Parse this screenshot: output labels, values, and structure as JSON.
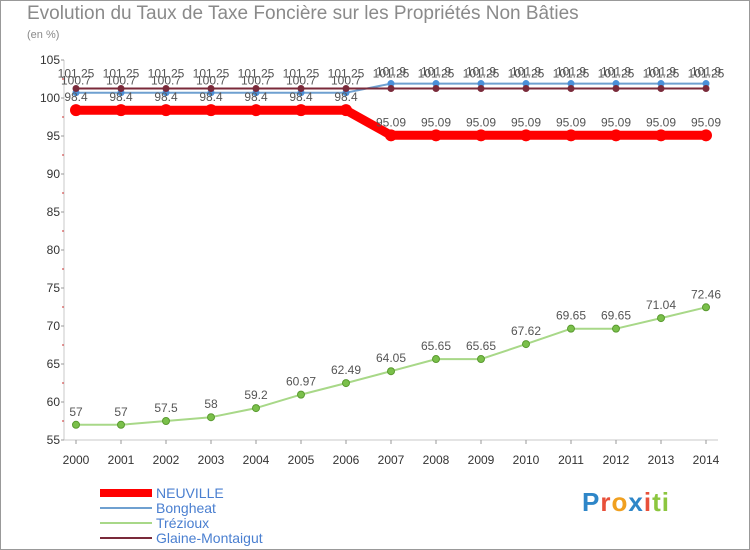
{
  "title": "Evolution du Taux de Taxe Foncière sur les Propriétés Non Bâties",
  "unit_label": "(en %)",
  "logo": {
    "text": "Proxiti",
    "letters": [
      {
        "ch": "P",
        "color": "#2e86c8"
      },
      {
        "ch": "r",
        "color": "#e8503a"
      },
      {
        "ch": "o",
        "color": "#f0a020"
      },
      {
        "ch": "x",
        "color": "#2e86c8"
      },
      {
        "ch": "i",
        "color": "#e8503a"
      },
      {
        "ch": "t",
        "color": "#8cc63f"
      },
      {
        "ch": "i",
        "color": "#8cc63f"
      }
    ]
  },
  "chart_data": {
    "type": "line",
    "title": "Evolution du Taux de Taxe Foncière sur les Propriétés Non Bâties",
    "ylabel": "(en %)",
    "xlabel": "",
    "x": [
      "2000",
      "2001",
      "2002",
      "2003",
      "2004",
      "2005",
      "2006",
      "2007",
      "2008",
      "2009",
      "2010",
      "2011",
      "2012",
      "2013",
      "2014"
    ],
    "ylim": [
      55,
      105
    ],
    "yticks": [
      55,
      60,
      65,
      70,
      75,
      80,
      85,
      90,
      95,
      100,
      105
    ],
    "grid": false,
    "legend": "bottom-left",
    "series": [
      {
        "name": "NEUVILLE",
        "color": "#ff0000",
        "values": [
          98.4,
          98.4,
          98.4,
          98.4,
          98.4,
          98.4,
          98.4,
          95.09,
          95.09,
          95.09,
          95.09,
          95.09,
          95.09,
          95.09,
          95.09
        ],
        "labels": [
          "98.4",
          "98.4",
          "98.4",
          "98.4",
          "98.4",
          "98.4",
          "98.4",
          "95.09",
          "95.09",
          "95.09",
          "95.09",
          "95.09",
          "95.09",
          "95.09",
          "95.09"
        ]
      },
      {
        "name": "Bongheat",
        "color": "#6fa0d0",
        "values": [
          100.7,
          100.7,
          100.7,
          100.7,
          100.7,
          100.7,
          100.7,
          101.9,
          101.9,
          101.9,
          101.9,
          101.9,
          101.9,
          101.9,
          101.9
        ],
        "labels": [
          "100.7",
          "100.7",
          "100.7",
          "100.7",
          "100.7",
          "100.7",
          "100.7",
          "101.9",
          "101.9",
          "101.9",
          "101.9",
          "101.9",
          "101.9",
          "101.9",
          "101.9"
        ]
      },
      {
        "name": "Trézioux",
        "color": "#a8d888",
        "values": [
          57,
          57,
          57.5,
          58,
          59.2,
          60.97,
          62.49,
          64.05,
          65.65,
          65.65,
          67.62,
          69.65,
          69.65,
          71.04,
          72.46
        ],
        "labels": [
          "57",
          "57",
          "57.5",
          "58",
          "59.2",
          "60.97",
          "62.49",
          "64.05",
          "65.65",
          "65.65",
          "67.62",
          "69.65",
          "69.65",
          "71.04",
          "72.46"
        ]
      },
      {
        "name": "Glaine-Montaigut",
        "color": "#7a2a3a",
        "values": [
          101.25,
          101.25,
          101.25,
          101.25,
          101.25,
          101.25,
          101.25,
          101.25,
          101.25,
          101.25,
          101.25,
          101.25,
          101.25,
          101.25,
          101.25
        ],
        "labels": [
          "101.25",
          "101.25",
          "101.25",
          "101.25",
          "101.25",
          "101.25",
          "101.25",
          "101.25",
          "101.25",
          "101.25",
          "101.25",
          "101.25",
          "101.25",
          "101.25",
          "101.25"
        ]
      }
    ]
  }
}
